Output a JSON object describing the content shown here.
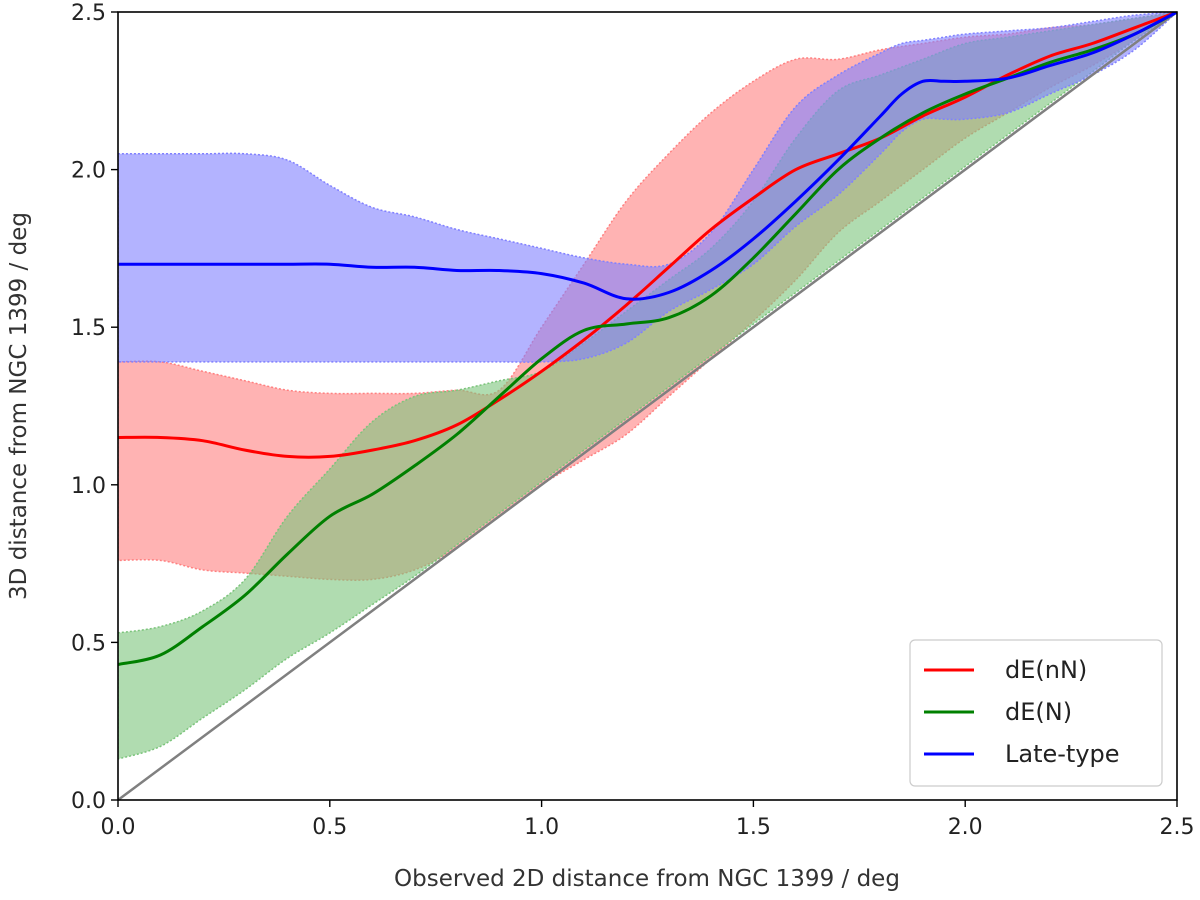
{
  "chart_data": {
    "type": "line",
    "title": "",
    "xlabel": "Observed 2D distance from NGC 1399 / deg",
    "ylabel": "3D distance from NGC 1399 / deg",
    "xlim": [
      0.0,
      2.5
    ],
    "ylim": [
      0.0,
      2.5
    ],
    "xticks": [
      "0.0",
      "0.5",
      "1.0",
      "1.5",
      "2.0",
      "2.5"
    ],
    "yticks": [
      "0.0",
      "0.5",
      "1.0",
      "1.5",
      "2.0",
      "2.5"
    ],
    "legend_position": "lower-right",
    "reference_line": {
      "name": "one-to-one",
      "color": "#808080",
      "x": [
        0.0,
        2.5
      ],
      "y": [
        0.0,
        2.5
      ]
    },
    "series": [
      {
        "name": "dE(nN)",
        "color": "#ff0000",
        "fill_color": "#ff8080",
        "x": [
          0.0,
          0.1,
          0.2,
          0.3,
          0.4,
          0.5,
          0.6,
          0.7,
          0.8,
          0.9,
          1.0,
          1.1,
          1.2,
          1.3,
          1.4,
          1.5,
          1.6,
          1.7,
          1.8,
          1.9,
          2.0,
          2.1,
          2.2,
          2.3,
          2.4,
          2.5
        ],
        "y": [
          1.15,
          1.15,
          1.14,
          1.11,
          1.09,
          1.09,
          1.11,
          1.14,
          1.19,
          1.27,
          1.36,
          1.46,
          1.57,
          1.69,
          1.81,
          1.91,
          2.0,
          2.05,
          2.1,
          2.17,
          2.23,
          2.3,
          2.36,
          2.4,
          2.45,
          2.5
        ],
        "lower": [
          0.76,
          0.76,
          0.73,
          0.72,
          0.71,
          0.7,
          0.7,
          0.73,
          0.8,
          0.9,
          1.0,
          1.08,
          1.16,
          1.28,
          1.4,
          1.52,
          1.65,
          1.8,
          1.9,
          2.0,
          2.1,
          2.18,
          2.26,
          2.33,
          2.41,
          2.5
        ],
        "upper": [
          1.39,
          1.39,
          1.36,
          1.33,
          1.3,
          1.29,
          1.29,
          1.29,
          1.3,
          1.3,
          1.5,
          1.7,
          1.9,
          2.05,
          2.18,
          2.28,
          2.35,
          2.35,
          2.38,
          2.4,
          2.42,
          2.43,
          2.45,
          2.46,
          2.48,
          2.5
        ]
      },
      {
        "name": "dE(N)",
        "color": "#008000",
        "fill_color": "#7bc47b",
        "x": [
          0.0,
          0.1,
          0.2,
          0.3,
          0.4,
          0.5,
          0.6,
          0.7,
          0.8,
          0.9,
          1.0,
          1.1,
          1.2,
          1.3,
          1.4,
          1.5,
          1.6,
          1.7,
          1.8,
          1.9,
          2.0,
          2.1,
          2.2,
          2.3,
          2.4,
          2.5
        ],
        "y": [
          0.43,
          0.46,
          0.55,
          0.65,
          0.78,
          0.9,
          0.97,
          1.06,
          1.16,
          1.28,
          1.4,
          1.49,
          1.51,
          1.53,
          1.6,
          1.72,
          1.86,
          2.0,
          2.1,
          2.18,
          2.24,
          2.29,
          2.34,
          2.38,
          2.43,
          2.5
        ],
        "lower": [
          0.13,
          0.17,
          0.26,
          0.35,
          0.45,
          0.53,
          0.62,
          0.71,
          0.81,
          0.91,
          1.01,
          1.11,
          1.21,
          1.31,
          1.41,
          1.51,
          1.61,
          1.71,
          1.81,
          1.91,
          2.01,
          2.11,
          2.21,
          2.31,
          2.41,
          2.5
        ],
        "upper": [
          0.53,
          0.55,
          0.6,
          0.7,
          0.9,
          1.05,
          1.2,
          1.28,
          1.3,
          1.33,
          1.36,
          1.45,
          1.55,
          1.65,
          1.75,
          1.9,
          2.1,
          2.25,
          2.3,
          2.35,
          2.4,
          2.42,
          2.44,
          2.46,
          2.48,
          2.5
        ]
      },
      {
        "name": "Late-type",
        "color": "#0000ff",
        "fill_color": "#8080ff",
        "x": [
          0.0,
          0.1,
          0.2,
          0.3,
          0.4,
          0.5,
          0.6,
          0.7,
          0.8,
          0.9,
          1.0,
          1.1,
          1.2,
          1.3,
          1.4,
          1.5,
          1.6,
          1.7,
          1.8,
          1.85,
          1.9,
          1.95,
          2.0,
          2.1,
          2.2,
          2.3,
          2.4,
          2.5
        ],
        "y": [
          1.7,
          1.7,
          1.7,
          1.7,
          1.7,
          1.7,
          1.69,
          1.69,
          1.68,
          1.68,
          1.67,
          1.64,
          1.59,
          1.61,
          1.68,
          1.78,
          1.9,
          2.03,
          2.17,
          2.24,
          2.28,
          2.28,
          2.28,
          2.29,
          2.33,
          2.37,
          2.43,
          2.5
        ],
        "lower": [
          1.39,
          1.39,
          1.39,
          1.39,
          1.39,
          1.39,
          1.39,
          1.39,
          1.39,
          1.39,
          1.39,
          1.4,
          1.45,
          1.55,
          1.62,
          1.7,
          1.82,
          1.92,
          2.05,
          2.12,
          2.16,
          2.16,
          2.16,
          2.18,
          2.24,
          2.3,
          2.38,
          2.5
        ],
        "upper": [
          2.05,
          2.05,
          2.05,
          2.05,
          2.03,
          1.95,
          1.88,
          1.85,
          1.81,
          1.78,
          1.75,
          1.72,
          1.7,
          1.7,
          1.8,
          2.0,
          2.2,
          2.3,
          2.37,
          2.4,
          2.41,
          2.42,
          2.43,
          2.44,
          2.45,
          2.47,
          2.49,
          2.5
        ]
      }
    ]
  }
}
